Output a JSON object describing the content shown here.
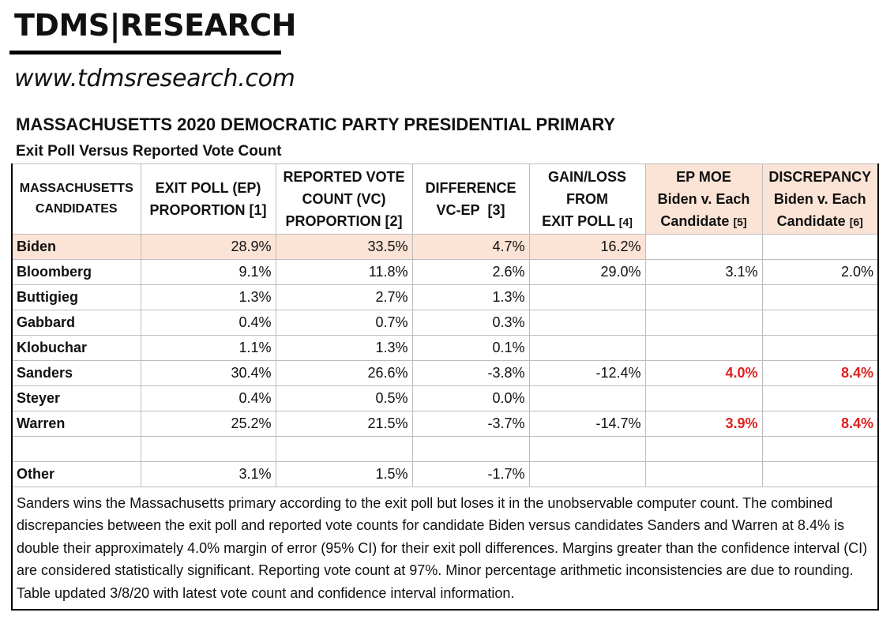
{
  "header": {
    "logo": "TDMS|RESEARCH",
    "website": "www.tdmsresearch.com"
  },
  "title": "MASSACHUSETTS 2020 DEMOCRATIC PARTY PRESIDENTIAL PRIMARY",
  "subtitle": "Exit Poll Versus Reported Vote Count",
  "table": {
    "columns": [
      {
        "line1": "MASSACHUSETTS",
        "line2": "CANDIDATES"
      },
      {
        "line1": "EXIT POLL (EP)",
        "line2": "PROPORTION",
        "ref": "[1]"
      },
      {
        "line1": "REPORTED VOTE",
        "line2": "COUNT (VC)",
        "line3": "PROPORTION",
        "ref": "[2]"
      },
      {
        "line1": "DIFFERENCE",
        "line2": "VC-EP",
        "ref": "[3]"
      },
      {
        "line1": "GAIN/LOSS",
        "line2": "FROM",
        "line3": "EXIT POLL",
        "ref": "[4]"
      },
      {
        "line1": "EP MOE",
        "line2": "Biden v. Each",
        "line3": "Candidate",
        "ref": "[5]"
      },
      {
        "line1": "DISCREPANCY",
        "line2": "Biden v. Each",
        "line3": "Candidate",
        "ref": "[6]"
      }
    ],
    "rows": [
      {
        "name": "Biden",
        "ep": "28.9%",
        "vc": "33.5%",
        "diff": "4.7%",
        "gain": "16.2%",
        "moe": "",
        "disc": ""
      },
      {
        "name": "Bloomberg",
        "ep": "9.1%",
        "vc": "11.8%",
        "diff": "2.6%",
        "gain": "29.0%",
        "moe": "3.1%",
        "disc": "2.0%"
      },
      {
        "name": "Buttigieg",
        "ep": "1.3%",
        "vc": "2.7%",
        "diff": "1.3%",
        "gain": "",
        "moe": "",
        "disc": ""
      },
      {
        "name": "Gabbard",
        "ep": "0.4%",
        "vc": "0.7%",
        "diff": "0.3%",
        "gain": "",
        "moe": "",
        "disc": ""
      },
      {
        "name": "Klobuchar",
        "ep": "1.1%",
        "vc": "1.3%",
        "diff": "0.1%",
        "gain": "",
        "moe": "",
        "disc": ""
      },
      {
        "name": "Sanders",
        "ep": "30.4%",
        "vc": "26.6%",
        "diff": "-3.8%",
        "gain": "-12.4%",
        "moe": "4.0%",
        "disc": "8.4%"
      },
      {
        "name": "Steyer",
        "ep": "0.4%",
        "vc": "0.5%",
        "diff": "0.0%",
        "gain": "",
        "moe": "",
        "disc": ""
      },
      {
        "name": "Warren",
        "ep": "25.2%",
        "vc": "21.5%",
        "diff": "-3.7%",
        "gain": "-14.7%",
        "moe": "3.9%",
        "disc": "8.4%"
      },
      {
        "name": "",
        "ep": "",
        "vc": "",
        "diff": "",
        "gain": "",
        "moe": "",
        "disc": ""
      },
      {
        "name": "Other",
        "ep": "3.1%",
        "vc": "1.5%",
        "diff": "-1.7%",
        "gain": "",
        "moe": "",
        "disc": ""
      }
    ],
    "note": "Sanders wins the Massachusetts primary according to the exit poll but loses it in the unobservable computer count. The combined discrepancies between the exit poll and reported vote counts for candidate Biden versus candidates Sanders and Warren at 8.4% is double their approximately 4.0% margin of error (95% CI) for their exit poll differences.  Margins greater than the confidence interval (CI) are considered statistically significant.  Reporting vote count at 97%. Minor percentage arithmetic inconsistencies are due to rounding. Table updated 3/8/20 with latest vote count and confidence interval information."
  },
  "colors": {
    "highlight": "#fbe4d6",
    "significant": "#e02020"
  }
}
